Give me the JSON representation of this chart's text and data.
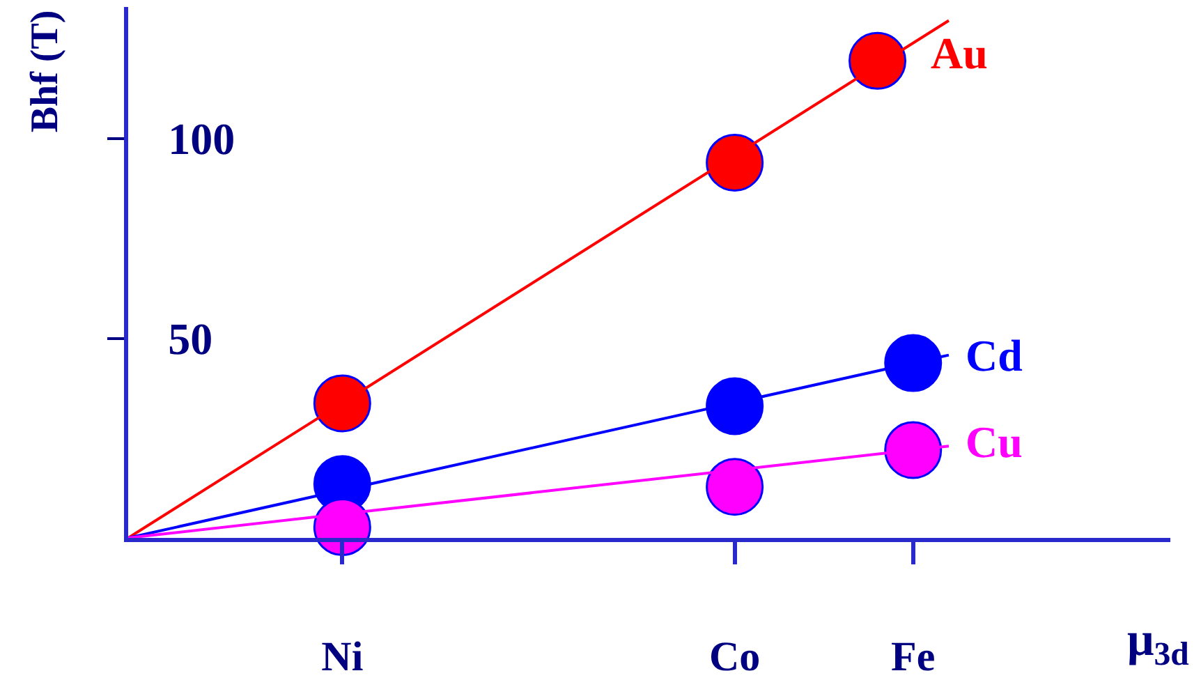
{
  "chart_data": {
    "type": "scatter",
    "xlabel": "μ$_{3d}$",
    "ylabel": "Bhf (T)",
    "categories": [
      null,
      null,
      null,
      null,
      null,
      null,
      "Ni",
      null,
      null,
      null,
      null,
      null,
      null,
      null,
      null,
      null,
      null,
      "Co",
      null,
      null,
      null,
      null,
      "Fe",
      null
    ],
    "ylim": [
      0,
      133
    ],
    "yticks": [
      50,
      100
    ],
    "legend": false,
    "marker": "circle",
    "series": [
      {
        "name": "Au",
        "color": "#ff0000",
        "values": [
          null,
          null,
          null,
          null,
          null,
          null,
          33.7,
          null,
          null,
          null,
          null,
          null,
          null,
          null,
          null,
          null,
          null,
          94,
          null,
          null,
          null,
          119.5,
          null,
          null
        ]
      },
      {
        "type": "line",
        "marker": "none",
        "color": "#ff0000",
        "values": [
          0,
          null,
          null,
          null,
          null,
          null,
          null,
          null,
          null,
          null,
          null,
          null,
          null,
          null,
          null,
          null,
          null,
          null,
          null,
          null,
          null,
          null,
          null,
          129.6
        ]
      },
      {
        "name": "Cd",
        "color": "#0000ff",
        "values": [
          null,
          null,
          null,
          null,
          null,
          null,
          13.5,
          null,
          null,
          null,
          null,
          null,
          null,
          null,
          null,
          null,
          null,
          33,
          null,
          null,
          null,
          null,
          43.8,
          null
        ]
      },
      {
        "type": "line",
        "marker": "none",
        "color": "#0000ff",
        "values": [
          0,
          null,
          null,
          null,
          null,
          null,
          null,
          null,
          null,
          null,
          null,
          null,
          null,
          null,
          null,
          null,
          null,
          null,
          null,
          null,
          null,
          null,
          null,
          45.8
        ]
      },
      {
        "name": "Cu",
        "color": "#ff00ff",
        "values": [
          null,
          null,
          null,
          null,
          null,
          null,
          2.7,
          null,
          null,
          null,
          null,
          null,
          null,
          null,
          null,
          null,
          null,
          12.8,
          null,
          null,
          null,
          null,
          22,
          null
        ]
      },
      {
        "type": "line",
        "marker": "none",
        "color": "#ff00ff",
        "values": [
          0,
          null,
          null,
          null,
          null,
          null,
          null,
          null,
          null,
          null,
          null,
          null,
          null,
          null,
          null,
          null,
          null,
          null,
          null,
          null,
          null,
          null,
          null,
          23
        ]
      }
    ]
  }
}
